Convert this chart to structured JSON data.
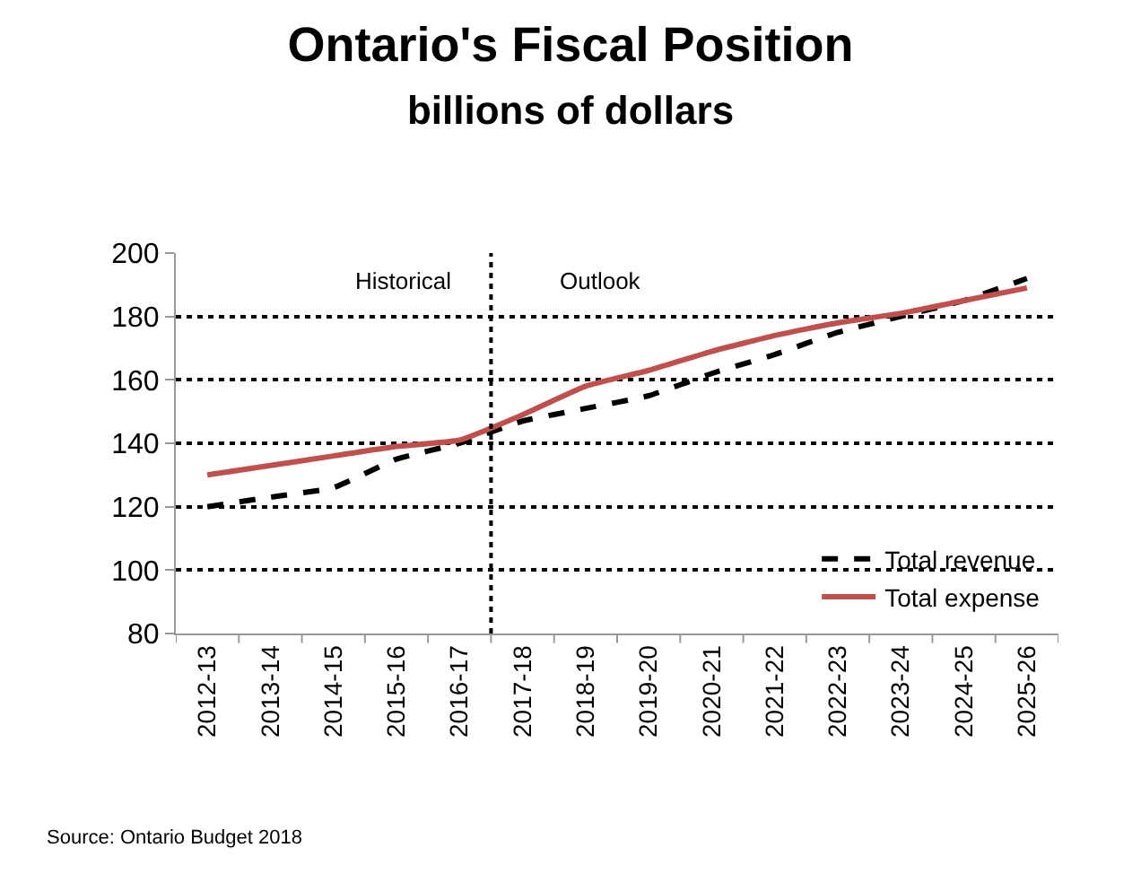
{
  "chart_data": {
    "type": "line",
    "title": "Ontario's Fiscal Position",
    "subtitle": "billions of dollars",
    "categories": [
      "2012-13",
      "2013-14",
      "2014-15",
      "2015-16",
      "2016-17",
      "2017-18",
      "2018-19",
      "2019-20",
      "2020-21",
      "2021-22",
      "2022-23",
      "2023-24",
      "2024-25",
      "2025-26"
    ],
    "series": [
      {
        "name": "Total revenue",
        "color": "#000000",
        "line_style": "dashed",
        "values": [
          120,
          123,
          126,
          135,
          140,
          147,
          151,
          155,
          162,
          168,
          175,
          180,
          185,
          192
        ]
      },
      {
        "name": "Total expense",
        "color": "#c0504d",
        "line_style": "solid",
        "values": [
          130,
          133,
          136,
          139,
          141,
          149,
          158,
          163,
          169,
          174,
          178,
          181,
          185,
          189
        ]
      }
    ],
    "ylim": [
      80,
      200
    ],
    "yticks": [
      80,
      100,
      120,
      140,
      160,
      180,
      200
    ],
    "grid": "y",
    "legend": "bottom right",
    "marker": "none",
    "annotations": [
      "Historical",
      "Outlook",
      "Source: Ontario Budget 2018"
    ]
  }
}
